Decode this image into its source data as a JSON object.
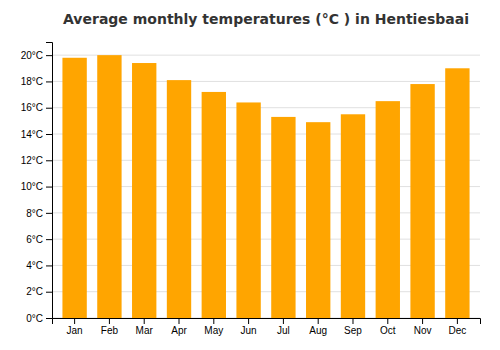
{
  "chart_data": {
    "type": "bar",
    "title": "Average monthly temperatures (°C ) in Hentiesbaai",
    "categories": [
      "Jan",
      "Feb",
      "Mar",
      "Apr",
      "May",
      "Jun",
      "Jul",
      "Aug",
      "Sep",
      "Oct",
      "Nov",
      "Dec"
    ],
    "values": [
      19.8,
      20.0,
      19.4,
      18.1,
      17.2,
      16.4,
      15.3,
      14.9,
      15.5,
      16.5,
      17.8,
      19.0
    ],
    "color": "#FFA500",
    "ylim": [
      0,
      21
    ],
    "yticks": [
      {
        "value": 0,
        "label": "0°C"
      },
      {
        "value": 2,
        "label": "2°C"
      },
      {
        "value": 4,
        "label": "4°C"
      },
      {
        "value": 6,
        "label": "6°C"
      },
      {
        "value": 8,
        "label": "8°C"
      },
      {
        "value": 10,
        "label": "10°C"
      },
      {
        "value": 12,
        "label": "12°C"
      },
      {
        "value": 14,
        "label": "14°C"
      },
      {
        "value": 16,
        "label": "16°C"
      },
      {
        "value": 18,
        "label": "18°C"
      },
      {
        "value": 20,
        "label": "20°C"
      }
    ],
    "grid": true
  }
}
